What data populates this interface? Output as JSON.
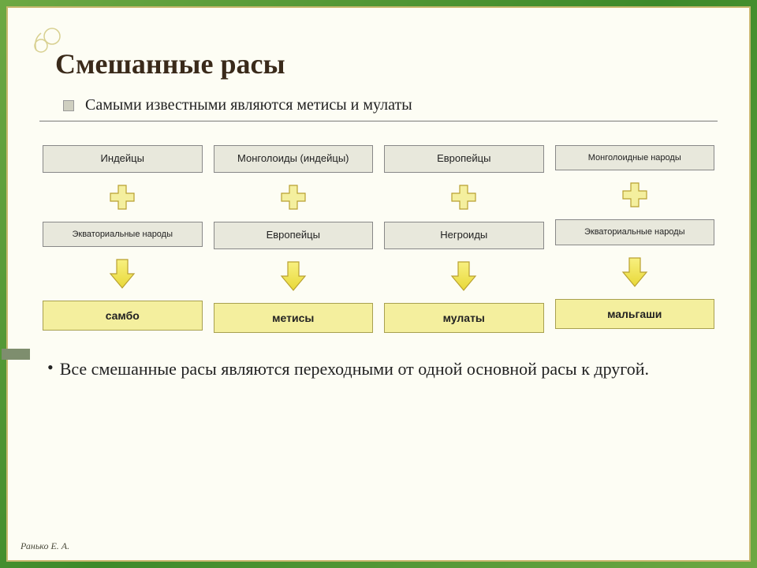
{
  "title": "Смешанные расы",
  "subtitle": "Самыми известными являются метисы и мулаты",
  "columns": [
    {
      "top": "Индейцы",
      "mid": "Экваториальные народы",
      "result": "самбо",
      "top_small": false,
      "mid_small": true
    },
    {
      "top": "Монголоиды (индейцы)",
      "mid": "Европейцы",
      "result": "метисы",
      "top_small": false,
      "mid_small": false
    },
    {
      "top": "Европейцы",
      "mid": "Негроиды",
      "result": "мулаты",
      "top_small": false,
      "mid_small": false
    },
    {
      "top": "Монголоидные народы",
      "mid": "Экваториальные народы",
      "result": "мальгаши",
      "top_small": true,
      "mid_small": true
    }
  ],
  "footer": "Все смешанные расы являются переходными от одной основной расы к другой.",
  "credit": "Ранько Е. А.",
  "colors": {
    "frame_gradient_a": "#6da843",
    "frame_gradient_b": "#3d8a2a",
    "inner_bg": "#fdfdf4",
    "inner_border": "#c9b870",
    "box_bg": "#e8e8dc",
    "box_border": "#888888",
    "result_bg": "#f4ef9e",
    "result_border": "#a8a050",
    "plus_fill": "#f4ef9e",
    "plus_stroke": "#b8a030",
    "arrow_fill_top": "#f8f080",
    "arrow_fill_bottom": "#e8d838",
    "arrow_stroke": "#b8a030",
    "hr": "#7a7a7a"
  },
  "fonts": {
    "title_size": 36,
    "subtitle_size": 20,
    "box_size": 13,
    "box_small_size": 11,
    "result_size": 14,
    "footer_size": 22
  }
}
